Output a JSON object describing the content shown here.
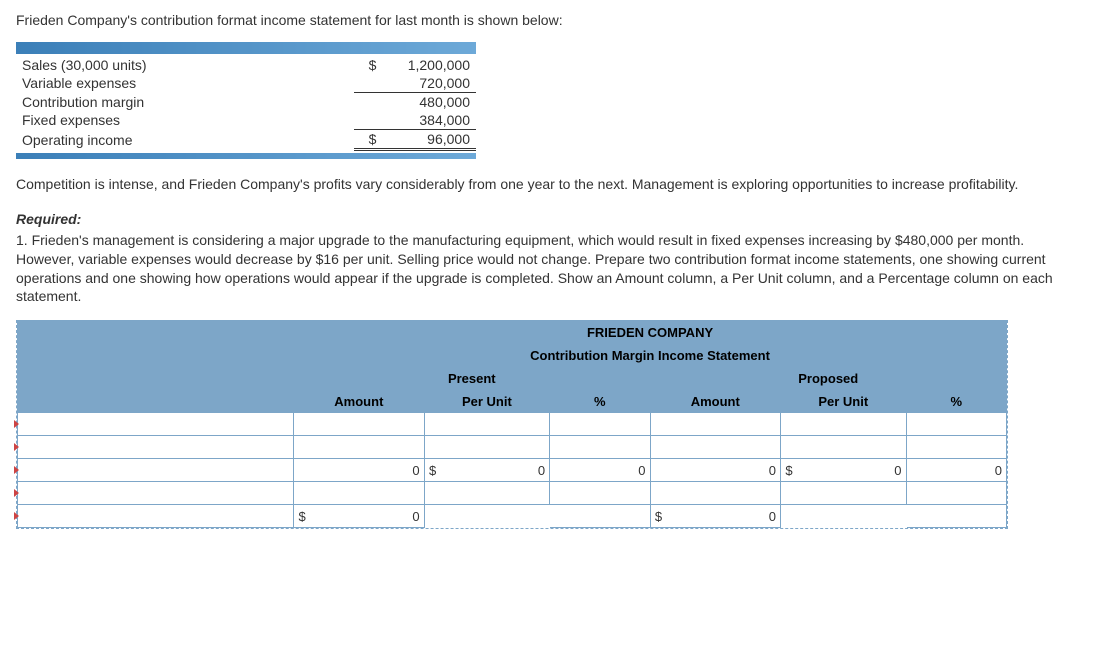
{
  "intro": "Frieden Company's contribution format income statement for last month is shown below:",
  "given": {
    "rows": [
      {
        "label": "Sales (30,000 units)",
        "sym": "$",
        "value": "1,200,000",
        "single_top": false,
        "double_bot": false
      },
      {
        "label": "Variable expenses",
        "sym": "",
        "value": "720,000",
        "single_top": false,
        "double_bot": false
      },
      {
        "label": "Contribution margin",
        "sym": "",
        "value": "480,000",
        "single_top": true,
        "double_bot": false
      },
      {
        "label": "Fixed expenses",
        "sym": "",
        "value": "384,000",
        "single_top": false,
        "double_bot": false
      },
      {
        "label": "Operating income",
        "sym": "$",
        "value": "96,000",
        "single_top": true,
        "double_bot": true
      }
    ]
  },
  "narrative": "Competition is intense, and Frieden Company's profits vary considerably from one year to the next. Management is exploring opportunities to increase profitability.",
  "required_head": "Required:",
  "required_body": "1. Frieden's management is considering a major upgrade to the manufacturing equipment, which would result in fixed expenses increasing by $480,000 per month. However, variable expenses would decrease by $16 per unit. Selling price would not change. Prepare two contribution format income statements, one showing current operations and one showing how operations would appear if the upgrade is completed. Show an Amount column, a Per Unit column, and a Percentage column on each statement.",
  "ws": {
    "title1": "FRIEDEN COMPANY",
    "title2": "Contribution Margin Income Statement",
    "present": "Present",
    "proposed": "Proposed",
    "cols": {
      "amount": "Amount",
      "per_unit": "Per Unit",
      "pct": "%"
    },
    "rows": [
      {
        "present_amount": {
          "sym": "",
          "val": ""
        },
        "present_pu": {
          "sym": "",
          "val": ""
        },
        "present_pct": "",
        "proposed_amount": {
          "sym": "",
          "val": ""
        },
        "proposed_pu": {
          "sym": "",
          "val": ""
        },
        "proposed_pct": ""
      },
      {
        "present_amount": {
          "sym": "",
          "val": ""
        },
        "present_pu": {
          "sym": "",
          "val": ""
        },
        "present_pct": "",
        "proposed_amount": {
          "sym": "",
          "val": ""
        },
        "proposed_pu": {
          "sym": "",
          "val": ""
        },
        "proposed_pct": ""
      },
      {
        "subtotal": true,
        "present_amount": {
          "sym": "",
          "val": "0"
        },
        "present_pu": {
          "sym": "$",
          "val": "0"
        },
        "present_pct": "0",
        "proposed_amount": {
          "sym": "",
          "val": "0"
        },
        "proposed_pu": {
          "sym": "$",
          "val": "0"
        },
        "proposed_pct": "0"
      },
      {
        "present_amount": {
          "sym": "",
          "val": ""
        },
        "present_pu": {
          "sym": "",
          "val": ""
        },
        "present_pct": "",
        "proposed_amount": {
          "sym": "",
          "val": ""
        },
        "proposed_pu": {
          "sym": "",
          "val": ""
        },
        "proposed_pct": ""
      },
      {
        "subtotal": true,
        "present_amount": {
          "sym": "$",
          "val": "0"
        },
        "present_pu": {
          "sym": "",
          "val": "",
          "blank": true
        },
        "present_pct": "",
        "proposed_amount": {
          "sym": "$",
          "val": "0"
        },
        "proposed_pu": {
          "sym": "",
          "val": "",
          "blank": true
        },
        "proposed_pct": ""
      }
    ]
  }
}
